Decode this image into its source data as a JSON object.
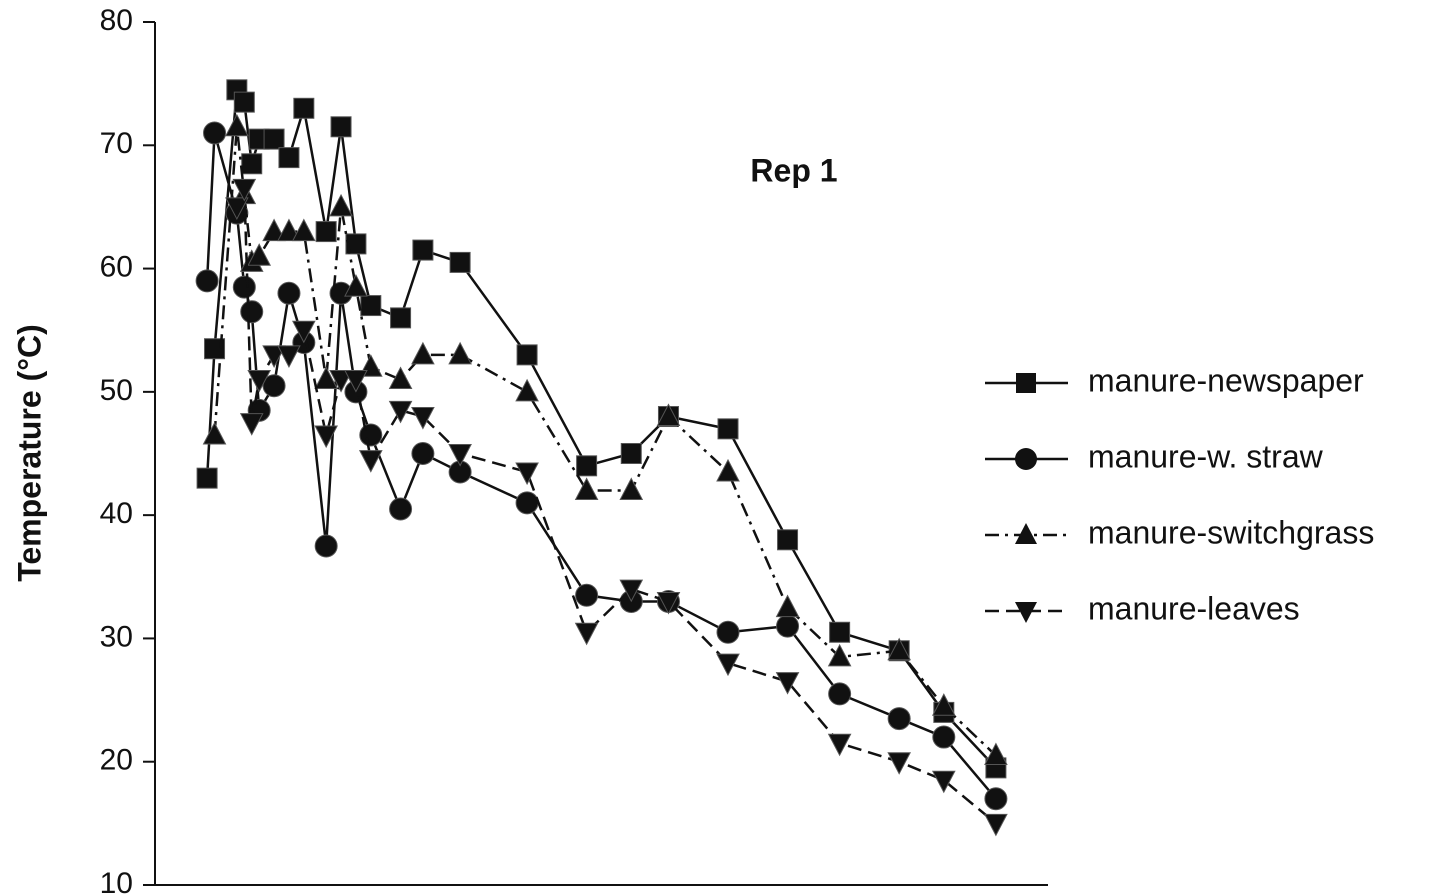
{
  "chart_data": {
    "type": "line",
    "annotation": "Rep 1",
    "y_label": "Temperature (°C)",
    "x": [
      3.5,
      4,
      5.5,
      6,
      6.5,
      7,
      8,
      9,
      10,
      11.5,
      12.5,
      13.5,
      14.5,
      16.5,
      18,
      20.5,
      25,
      29,
      32,
      34.5,
      38.5,
      42.5,
      46,
      50,
      53,
      56.5
    ],
    "xlim": [
      0,
      60
    ],
    "ylim": [
      10,
      80
    ],
    "yticks": [
      10,
      20,
      30,
      40,
      50,
      60,
      70,
      80
    ],
    "legend": "right",
    "series": [
      {
        "name": "manure-newspaper",
        "color": "#111111",
        "marker": "square",
        "dash": "solid",
        "values": [
          43,
          53.5,
          74.5,
          73.5,
          68.5,
          70.5,
          70.5,
          69,
          73,
          63,
          71.5,
          62,
          57,
          56,
          61.5,
          60.5,
          53,
          44,
          45,
          48,
          47,
          38,
          30.5,
          29,
          24,
          19.5
        ]
      },
      {
        "name": "manure-w. straw",
        "color": "#111111",
        "marker": "circle",
        "dash": "solid",
        "values": [
          59,
          71,
          64.5,
          58.5,
          56.5,
          48.5,
          50.5,
          58,
          54,
          37.5,
          58,
          50,
          46.5,
          40.5,
          45,
          43.5,
          41,
          33.5,
          33,
          33,
          30.5,
          31,
          25.5,
          23.5,
          22,
          17
        ]
      },
      {
        "name": "manure-switchgrass",
        "color": "#111111",
        "marker": "triangle-up",
        "dash": "dashdot",
        "values": [
          null,
          46.5,
          71.5,
          66,
          60.5,
          61,
          63,
          63,
          63,
          51,
          65,
          58.5,
          52,
          51,
          53,
          53,
          50,
          42,
          42,
          48,
          43.5,
          32.5,
          28.5,
          29,
          24.5,
          20.5
        ]
      },
      {
        "name": "manure-leaves",
        "color": "#111111",
        "marker": "triangle-down",
        "dash": "dashed",
        "values": [
          null,
          null,
          65,
          66.5,
          47.5,
          51,
          53,
          53,
          55,
          46.5,
          51,
          51,
          44.5,
          48.5,
          48,
          45,
          43.5,
          30.5,
          34,
          33,
          28,
          26.5,
          21.5,
          20,
          18.5,
          15
        ]
      }
    ]
  }
}
